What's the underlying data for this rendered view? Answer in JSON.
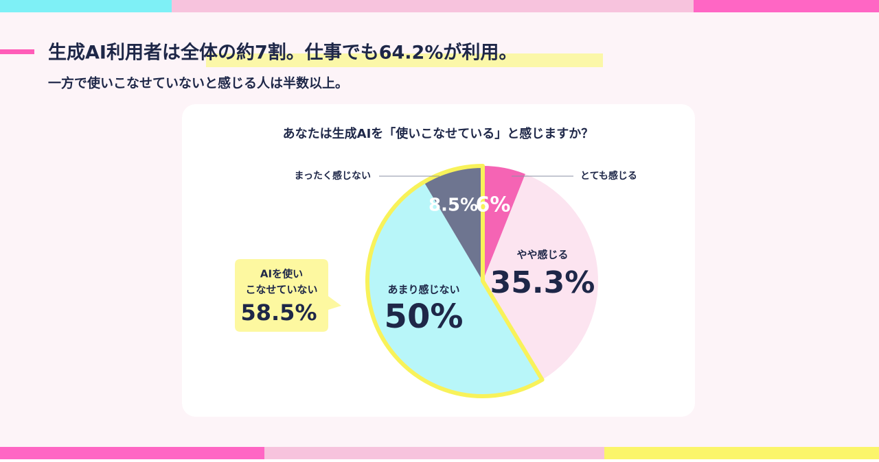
{
  "header": {
    "title": "生成AI利用者は全体の約7割。仕事でも64.2%が利用。",
    "subtitle": "一方で使いこなせていないと感じる人は半数以上。"
  },
  "chart_data": {
    "type": "pie",
    "title": "あなたは生成AIを「使いこなせている」と感じますか？",
    "categories": [
      "とても感じる",
      "やや感じる",
      "あまり感じない",
      "まったく感じない"
    ],
    "values": [
      6,
      35.3,
      50,
      8.5
    ],
    "value_labels": [
      "6%",
      "35.3%",
      "50%",
      "8.5%"
    ],
    "colors": [
      "#f564b4",
      "#fce4f0",
      "#b8f6f9",
      "#6e7590"
    ],
    "annotation": {
      "lines": [
        "AIを使い",
        "こなせていない"
      ],
      "value": {
        "value": 58.5,
        "label": "58.5%"
      },
      "color": "#f8f25a"
    }
  }
}
